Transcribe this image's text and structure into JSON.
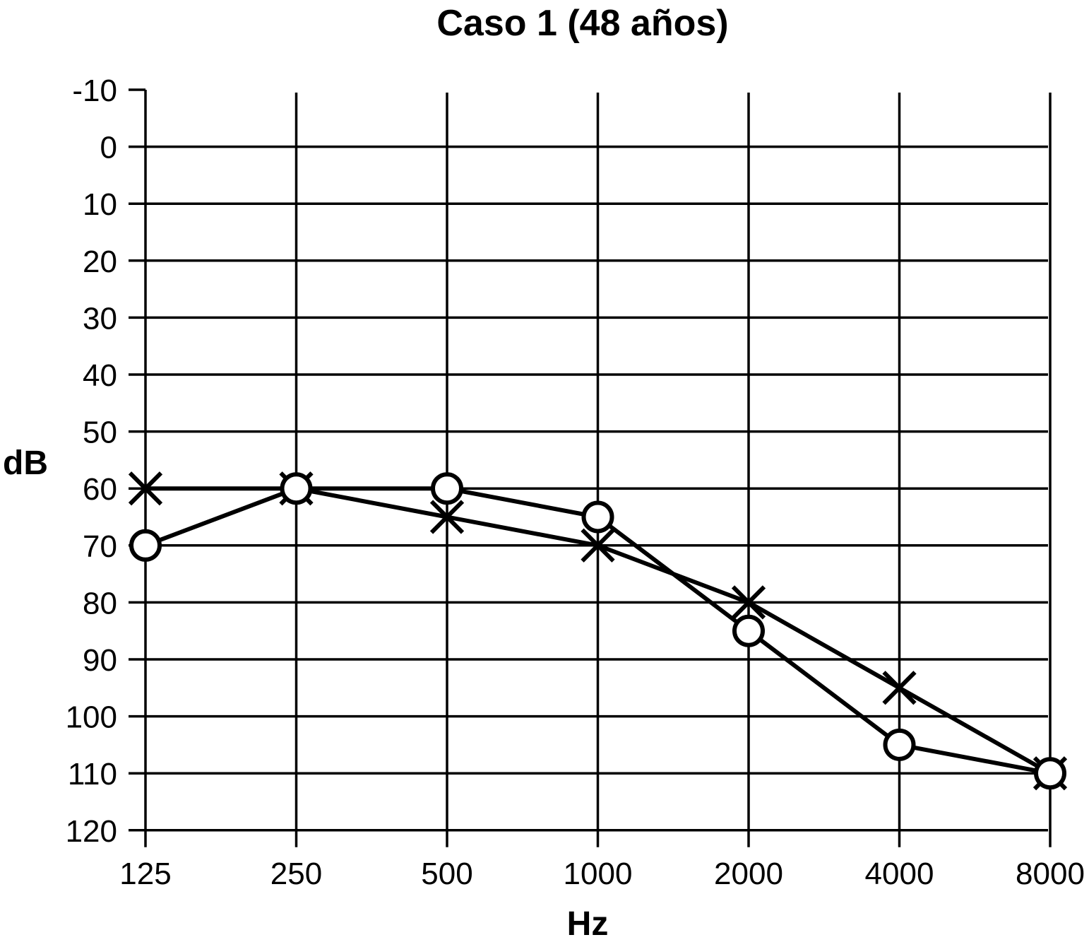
{
  "chart_data": {
    "type": "line",
    "title": "Caso 1 (48 años)",
    "xlabel": "Hz",
    "ylabel": "dB",
    "x": [
      125,
      250,
      500,
      1000,
      2000,
      4000,
      8000
    ],
    "x_tick_labels": [
      "125",
      "250",
      "500",
      "1000",
      "2000",
      "4000",
      "8000"
    ],
    "x_scale": "log2",
    "y_ticks": [
      -10,
      0,
      10,
      20,
      30,
      40,
      50,
      60,
      70,
      80,
      90,
      100,
      110,
      120
    ],
    "y_tick_labels": [
      "-10",
      "0",
      "10",
      "20",
      "30",
      "40",
      "50",
      "60",
      "70",
      "80",
      "90",
      "100",
      "110",
      "120"
    ],
    "ylim": [
      -10,
      120
    ],
    "y_inverted": true,
    "grid": true,
    "series": [
      {
        "marker": "o",
        "values": [
          70,
          60,
          60,
          65,
          85,
          105,
          110
        ]
      },
      {
        "marker": "x",
        "values": [
          60,
          60,
          65,
          70,
          80,
          95,
          110
        ]
      }
    ],
    "colors": {
      "line": "#000000",
      "background": "#ffffff"
    }
  }
}
